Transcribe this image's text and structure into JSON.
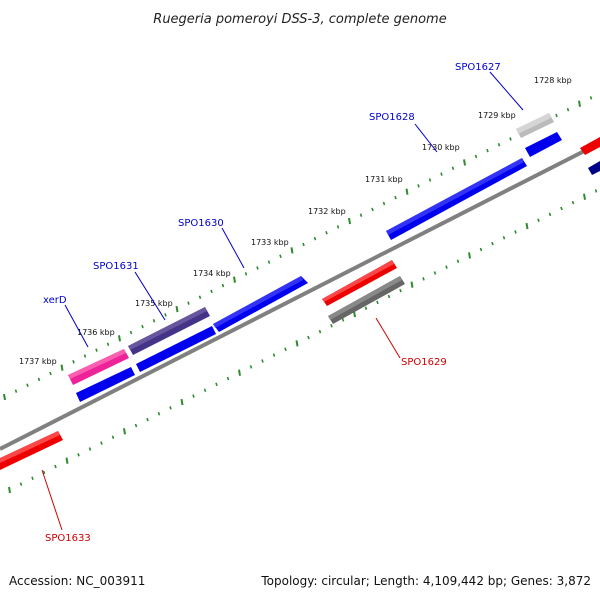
{
  "title": "Ruegeria pomeroyi DSS-3, complete genome",
  "footer": {
    "accession": "Accession: NC_003911",
    "summary": "Topology: circular; Length: 4,109,442 bp; Genes: 3,872"
  },
  "scale": {
    "unit": "kbp",
    "labeled_ticks": [
      {
        "kbp": 1728,
        "label": "1728 kbp"
      },
      {
        "kbp": 1729,
        "label": "1729 kbp"
      },
      {
        "kbp": 1730,
        "label": "1730 kbp"
      },
      {
        "kbp": 1731,
        "label": "1731 kbp"
      },
      {
        "kbp": 1732,
        "label": "1732 kbp"
      },
      {
        "kbp": 1733,
        "label": "1733 kbp"
      },
      {
        "kbp": 1734,
        "label": "1734 kbp"
      },
      {
        "kbp": 1735,
        "label": "1735 kbp"
      },
      {
        "kbp": 1736,
        "label": "1736 kbp"
      },
      {
        "kbp": 1737,
        "label": "1737 kbp"
      }
    ]
  },
  "colors": {
    "backbone": "#808080",
    "tick": "#2e8b2e",
    "label_forward": "#0000cc",
    "label_reverse": "#cc0000",
    "cds_blue": "#0000ee",
    "cds_red": "#ee0000",
    "xerD": "#ee2299",
    "SPO1631": "#443388",
    "SPO1627": "#bbbbbb",
    "SPO1629": "#666666"
  },
  "genes": [
    {
      "name": "SPO1627",
      "strand": "forward",
      "labeled": true
    },
    {
      "name": "SPO1628",
      "strand": "forward",
      "labeled": true
    },
    {
      "name": "SPO1630",
      "strand": "forward",
      "labeled": true
    },
    {
      "name": "SPO1631",
      "strand": "forward",
      "labeled": true
    },
    {
      "name": "xerD",
      "strand": "forward",
      "labeled": true
    },
    {
      "name": "SPO1629",
      "strand": "reverse",
      "labeled": true
    },
    {
      "name": "SPO1633",
      "strand": "reverse",
      "labeled": true
    }
  ]
}
